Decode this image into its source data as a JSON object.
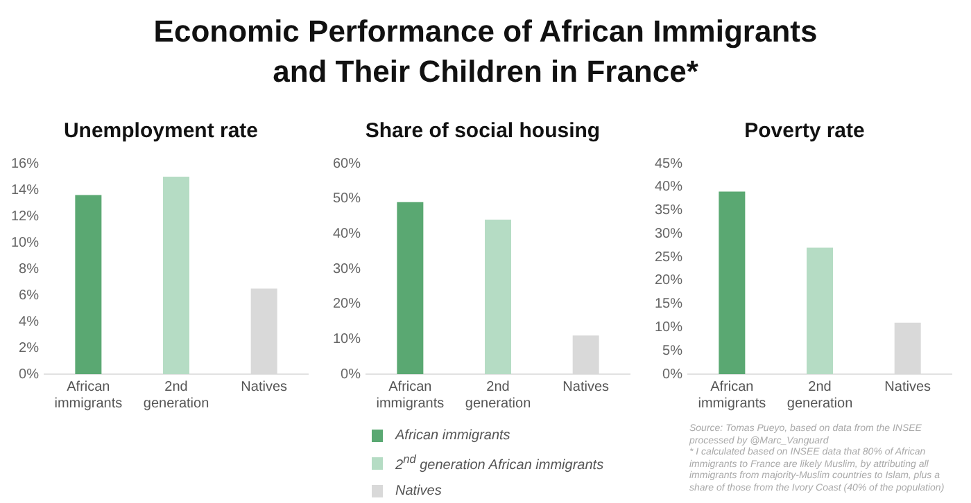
{
  "chart_data": [
    {
      "type": "other",
      "title": "Economic Performance of African Immigrants and Their Children in France*"
    },
    {
      "type": "bar",
      "title": "Unemployment rate",
      "categories": [
        "African immigrants",
        "2nd generation",
        "Natives"
      ],
      "stacked": true,
      "grid": false,
      "series": [
        {
          "color": "#5aa872",
          "values": [
            13.6,
            null,
            null
          ]
        },
        {
          "color": "#b5dcc4",
          "values": [
            null,
            15,
            null
          ]
        },
        {
          "color": "#d9d9d9",
          "values": [
            null,
            null,
            6.5
          ]
        }
      ],
      "ylim": [
        0,
        16
      ],
      "yticks": [
        {
          "value": 0,
          "label": "0%"
        },
        {
          "value": 2,
          "label": "2%"
        },
        {
          "value": 4,
          "label": "4%"
        },
        {
          "value": 6,
          "label": "6%"
        },
        {
          "value": 8,
          "label": "8%"
        },
        {
          "value": 10,
          "label": "10%"
        },
        {
          "value": 12,
          "label": "12%"
        },
        {
          "value": 14,
          "label": "14%"
        },
        {
          "value": 16,
          "label": "16%"
        }
      ]
    },
    {
      "type": "bar",
      "title": "Share of social housing",
      "categories": [
        "African immigrants",
        "2nd generation",
        "Natives"
      ],
      "stacked": true,
      "grid": false,
      "legend": "bottom",
      "series": [
        {
          "name": "African immigrants",
          "color": "#5aa872",
          "values": [
            49,
            null,
            null
          ]
        },
        {
          "name": "2$^{nd}$ generation African immigrants",
          "color": "#b5dcc4",
          "values": [
            null,
            44,
            null
          ]
        },
        {
          "name": "Natives",
          "color": "#d9d9d9",
          "values": [
            null,
            null,
            11
          ]
        }
      ],
      "ylim": [
        0,
        60
      ],
      "yticks": [
        {
          "value": 0,
          "label": "0%"
        },
        {
          "value": 10,
          "label": "10%"
        },
        {
          "value": 20,
          "label": "20%"
        },
        {
          "value": 30,
          "label": "30%"
        },
        {
          "value": 40,
          "label": "40%"
        },
        {
          "value": 50,
          "label": "50%"
        },
        {
          "value": 60,
          "label": "60%"
        }
      ]
    },
    {
      "type": "bar",
      "title": "Poverty rate",
      "categories": [
        "African immigrants",
        "2nd generation",
        "Natives"
      ],
      "stacked": true,
      "grid": false,
      "series": [
        {
          "color": "#5aa872",
          "values": [
            39,
            null,
            null
          ]
        },
        {
          "color": "#b5dcc4",
          "values": [
            null,
            27,
            null
          ]
        },
        {
          "color": "#d9d9d9",
          "values": [
            null,
            null,
            11
          ]
        }
      ],
      "ylim": [
        0,
        45
      ],
      "yticks": [
        {
          "value": 0,
          "label": "0%"
        },
        {
          "value": 5,
          "label": "5%"
        },
        {
          "value": 10,
          "label": "10%"
        },
        {
          "value": 15,
          "label": "15%"
        },
        {
          "value": 20,
          "label": "20%"
        },
        {
          "value": 25,
          "label": "25%"
        },
        {
          "value": 30,
          "label": "30%"
        },
        {
          "value": 35,
          "label": "35%"
        },
        {
          "value": 40,
          "label": "40%"
        },
        {
          "value": 45,
          "label": "45%"
        }
      ],
      "annotations": [
        "Source: Tomas Pueyo, based on data from the INSEE processed by @Marc_Vanguard",
        "* I calculated based on INSEE data that 80% of African immigrants to France are likely Muslim, by attributing all immigrants from majority-Muslim countries to Islam, plus a share of those from the Ivory Coast (40% of the population)"
      ]
    }
  ]
}
